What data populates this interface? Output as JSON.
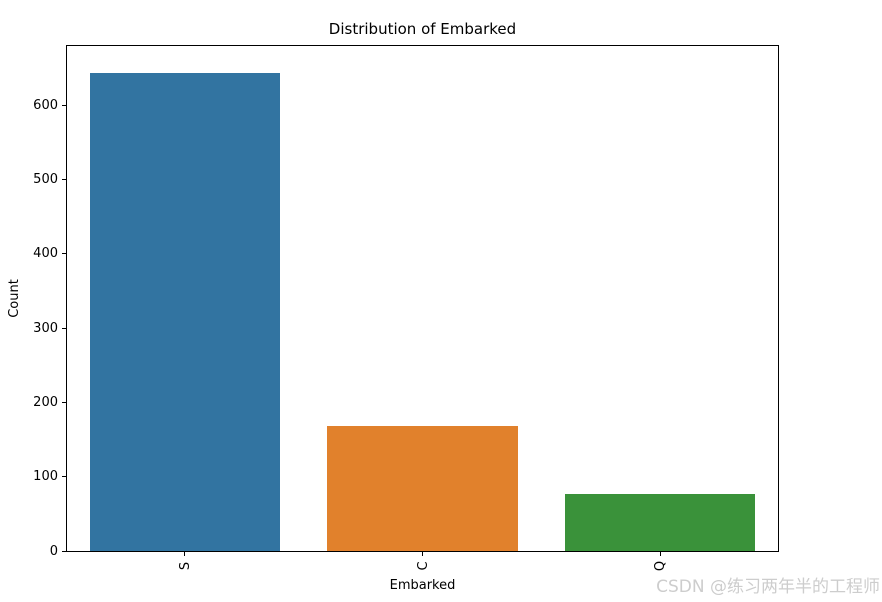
{
  "figure": {
    "watermark": "CSDN @练习两年半的工程师"
  },
  "colors": {
    "spine": "#000000",
    "text": "#000000",
    "watermark": "#cdcdcd",
    "background": "#ffffff"
  },
  "chart_data": {
    "type": "bar",
    "title": "Distribution of Embarked",
    "xlabel": "Embarked",
    "ylabel": "Count",
    "categories": [
      "S",
      "C",
      "Q"
    ],
    "values": [
      644,
      168,
      77
    ],
    "bar_colors": [
      "#3274a1",
      "#e1812c",
      "#3a923a"
    ],
    "yticks": [
      0,
      100,
      200,
      300,
      400,
      500,
      600
    ],
    "ylim": [
      0,
      680
    ],
    "xtick_rotation": 90,
    "grid": false,
    "legend_position": "none",
    "bar_width_fraction": 0.8
  }
}
